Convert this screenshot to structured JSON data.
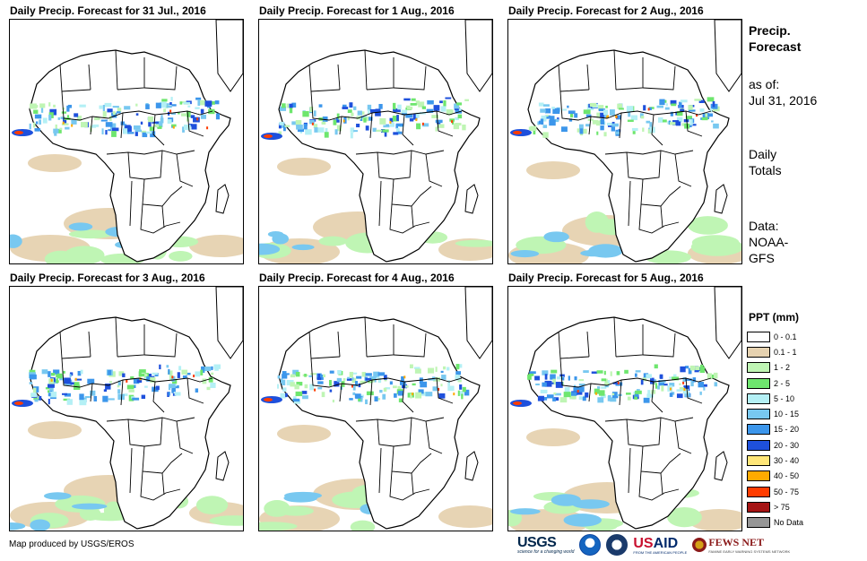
{
  "panels": [
    {
      "title": "Daily Precip. Forecast for 31 Jul., 2016",
      "variant": 0
    },
    {
      "title": "Daily Precip. Forecast for 1 Aug., 2016",
      "variant": 1
    },
    {
      "title": "Daily Precip. Forecast for 2 Aug., 2016",
      "variant": 2
    },
    {
      "title": "Daily Precip. Forecast for 3 Aug., 2016",
      "variant": 3
    },
    {
      "title": "Daily Precip. Forecast for 4 Aug., 2016",
      "variant": 4
    },
    {
      "title": "Daily Precip. Forecast for 5 Aug., 2016",
      "variant": 5
    }
  ],
  "side": {
    "title_line1": "Precip.",
    "title_line2": "Forecast",
    "asof_label": "as of:",
    "asof_date": "Jul 31, 2016",
    "totals_line1": "Daily",
    "totals_line2": "Totals",
    "data_line1": "Data:",
    "data_line2": "NOAA-",
    "data_line3": "GFS"
  },
  "legend": {
    "title": "PPT (mm)",
    "items": [
      {
        "label": "0 - 0.1",
        "color": "#ffffff"
      },
      {
        "label": "0.1 - 1",
        "color": "#e6d2b0"
      },
      {
        "label": "1 - 2",
        "color": "#bff5b4"
      },
      {
        "label": "2 - 5",
        "color": "#6ee66e"
      },
      {
        "label": "5 - 10",
        "color": "#b4f0f5"
      },
      {
        "label": "10 - 15",
        "color": "#78c8f0"
      },
      {
        "label": "15 - 20",
        "color": "#3c96eb"
      },
      {
        "label": "20 - 30",
        "color": "#1e50dc"
      },
      {
        "label": "30 - 40",
        "color": "#ffe678"
      },
      {
        "label": "40 - 50",
        "color": "#ffaa00"
      },
      {
        "label": "50 - 75",
        "color": "#ff3c00"
      },
      {
        "label": "> 75",
        "color": "#a51414"
      },
      {
        "label": "No Data",
        "color": "#969696"
      }
    ]
  },
  "credit": "Map produced by USGS/EROS",
  "logos": {
    "usgs": "USGS",
    "usgs_tagline": "science for a changing world",
    "usaid_a": "US",
    "usaid_b": "AID",
    "usaid_tagline": "FROM THE AMERICAN PEOPLE",
    "fews": "FEWS NET",
    "fews_tagline": "FAMINE EARLY WARNING SYSTEMS NETWORK"
  }
}
